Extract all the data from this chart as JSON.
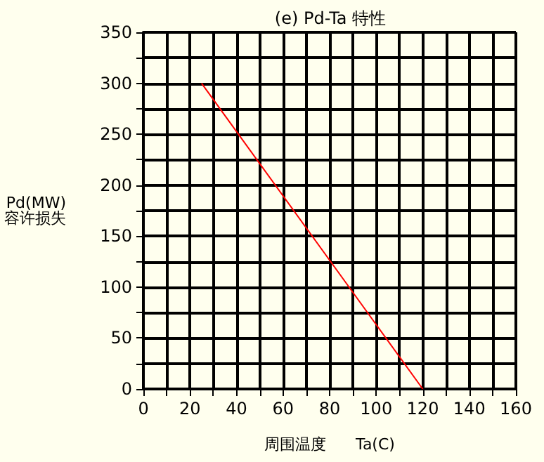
{
  "chart_data": {
    "type": "line",
    "title": "(e) Pd-Ta 特性",
    "xlabel": "周围温度      Ta(C)",
    "ylabel": "Pd(MW)\n容许损失",
    "x": [
      25,
      120
    ],
    "series": [
      {
        "color": "#ff0000",
        "values": [
          300,
          0
        ]
      }
    ],
    "xlim": [
      0,
      160
    ],
    "xticks": [
      0,
      {
        "value": 10,
        "label": null
      },
      20,
      {
        "value": 30,
        "label": null
      },
      40,
      {
        "value": 50,
        "label": null
      },
      60,
      {
        "value": 70,
        "label": null
      },
      80,
      {
        "value": 90,
        "label": null
      },
      100,
      {
        "value": 110,
        "label": null
      },
      120,
      {
        "value": 130,
        "label": null
      },
      140,
      {
        "value": 150,
        "label": null
      },
      160
    ],
    "ylim": [
      0,
      350
    ],
    "yticks": [
      0,
      {
        "value": 25,
        "label": null
      },
      50,
      {
        "value": 75,
        "label": null
      },
      100,
      {
        "value": 125,
        "label": null
      },
      150,
      {
        "value": 175,
        "label": null
      },
      200,
      {
        "value": 225,
        "label": null
      },
      250,
      {
        "value": 275,
        "label": null
      },
      300,
      {
        "value": 325,
        "label": null
      },
      350
    ],
    "grid": true,
    "marker": "none",
    "line_style": "solid"
  }
}
